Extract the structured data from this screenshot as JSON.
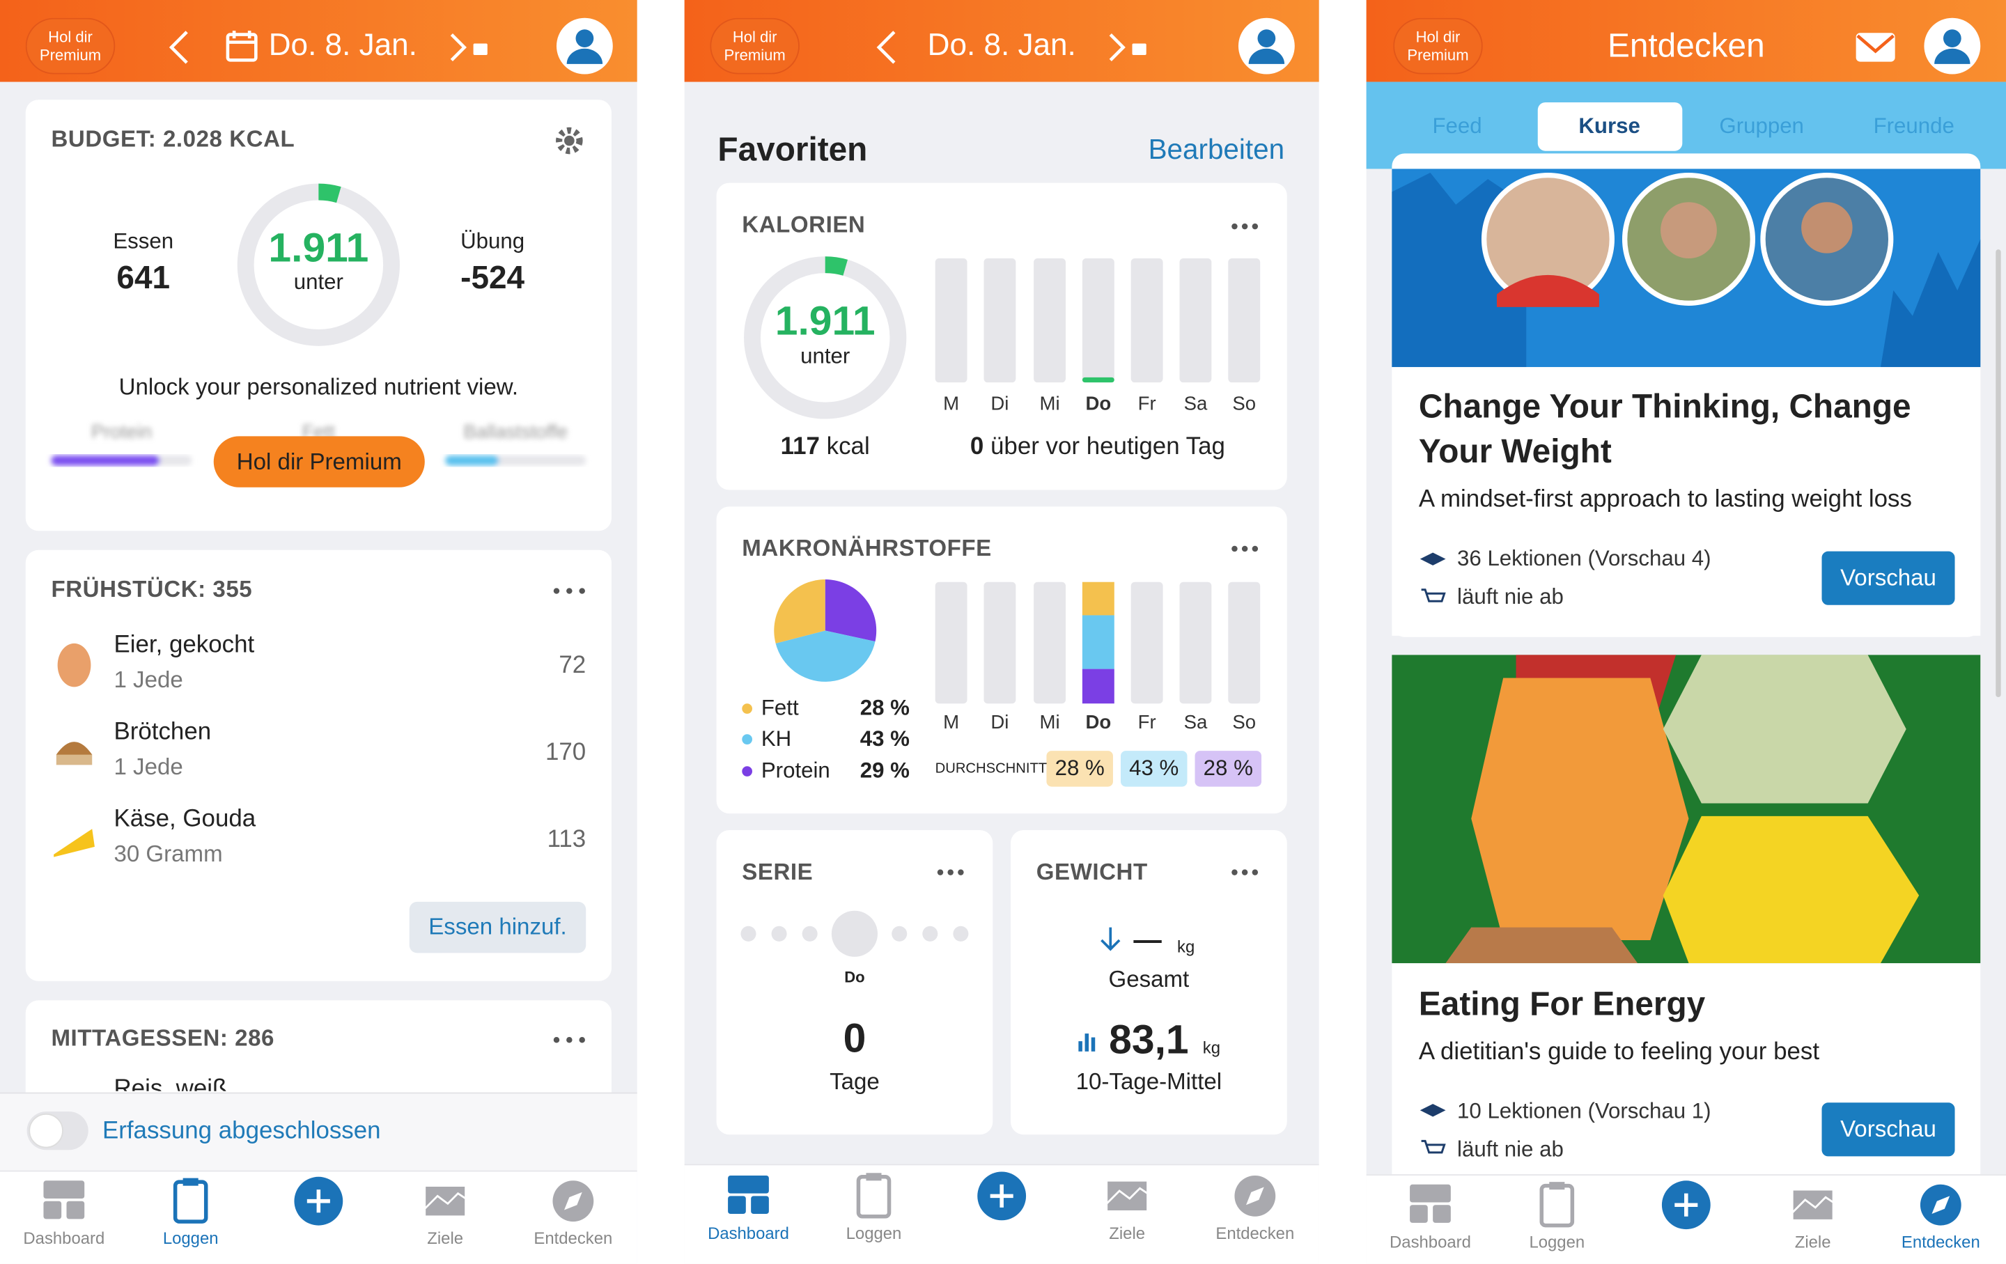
{
  "screens": [
    {
      "header": {
        "premium": [
          "Hol dir",
          "Premium"
        ],
        "date": "Do. 8. Jan."
      },
      "budget": {
        "title": "BUDGET: 2.028 KCAL",
        "food_label": "Essen",
        "food": "641",
        "remaining": "1.911",
        "remaining_label": "unter",
        "exercise_label": "Übung",
        "exercise": "-524",
        "unlock": "Unlock your personalized nutrient view.",
        "nutrients": [
          "Protein",
          "Fett",
          "Ballaststoffe"
        ],
        "button": "Hol dir Premium"
      },
      "meals": [
        {
          "title": "FRÜHSTÜCK: 355",
          "items": [
            {
              "name": "Eier, gekocht",
              "amount": "1 Jede",
              "kcal": "72"
            },
            {
              "name": "Brötchen",
              "amount": "1 Jede",
              "kcal": "170"
            },
            {
              "name": "Käse, Gouda",
              "amount": "30 Gramm",
              "kcal": "113"
            }
          ],
          "button": "Essen hinzuf."
        },
        {
          "title": "MITTAGESSEN: 286",
          "items": [
            {
              "name": "Reis, weiß"
            }
          ]
        }
      ],
      "footer": "Erfassung abgeschlossen",
      "nav": [
        "Dashboard",
        "Loggen",
        "Ziele",
        "Entdecken"
      ]
    },
    {
      "header": {
        "premium": [
          "Hol dir",
          "Premium"
        ],
        "date": "Do. 8. Jan."
      },
      "title": "Favoriten",
      "edit": "Bearbeiten",
      "calories": {
        "title": "KALORIEN",
        "remaining": "1.911",
        "remaining_label": "unter",
        "kcal_value": "117",
        "kcal_unit": "kcal",
        "days": [
          "M",
          "Di",
          "Mi",
          "Do",
          "Fr",
          "Sa",
          "So"
        ],
        "summary_value": "0",
        "summary_text": "über vor heutigen Tag"
      },
      "macros": {
        "title": "MAKRONÄHRSTOFFE",
        "legend": [
          {
            "name": "Fett",
            "pct": "28 %"
          },
          {
            "name": "KH",
            "pct": "43 %"
          },
          {
            "name": "Protein",
            "pct": "29 %"
          }
        ],
        "days": [
          "M",
          "Di",
          "Mi",
          "Do",
          "Fr",
          "Sa",
          "So"
        ],
        "average_label": "DURCHSCHNITT",
        "average": [
          "28 %",
          "43 %",
          "28 %"
        ]
      },
      "streak": {
        "title": "SERIE",
        "day": "Do",
        "value": "0",
        "unit": "Tage"
      },
      "weight": {
        "title": "GEWICHT",
        "total_value": "—",
        "total_unit": "kg",
        "total_label": "Gesamt",
        "avg_value": "83,1",
        "avg_unit": "kg",
        "avg_label": "10-Tage-Mittel"
      },
      "nav": [
        "Dashboard",
        "Loggen",
        "Ziele",
        "Entdecken"
      ]
    },
    {
      "header": {
        "premium": [
          "Hol dir",
          "Premium"
        ],
        "title": "Entdecken"
      },
      "tabs": [
        "Feed",
        "Kurse",
        "Gruppen",
        "Freunde"
      ],
      "courses": [
        {
          "title": [
            "Change Your Thinking, Change",
            "Your Weight"
          ],
          "subtitle": "A mindset-first approach to lasting weight loss",
          "lessons": "36 Lektionen (Vorschau 4)",
          "expiry": "läuft nie ab",
          "button": "Vorschau"
        },
        {
          "title": [
            "Eating For Energy"
          ],
          "subtitle": "A dietitian's guide to feeling your best",
          "lessons": "10 Lektionen (Vorschau 1)",
          "expiry": "läuft nie ab",
          "button": "Vorschau"
        }
      ],
      "nav": [
        "Dashboard",
        "Loggen",
        "Ziele",
        "Entdecken"
      ]
    }
  ]
}
